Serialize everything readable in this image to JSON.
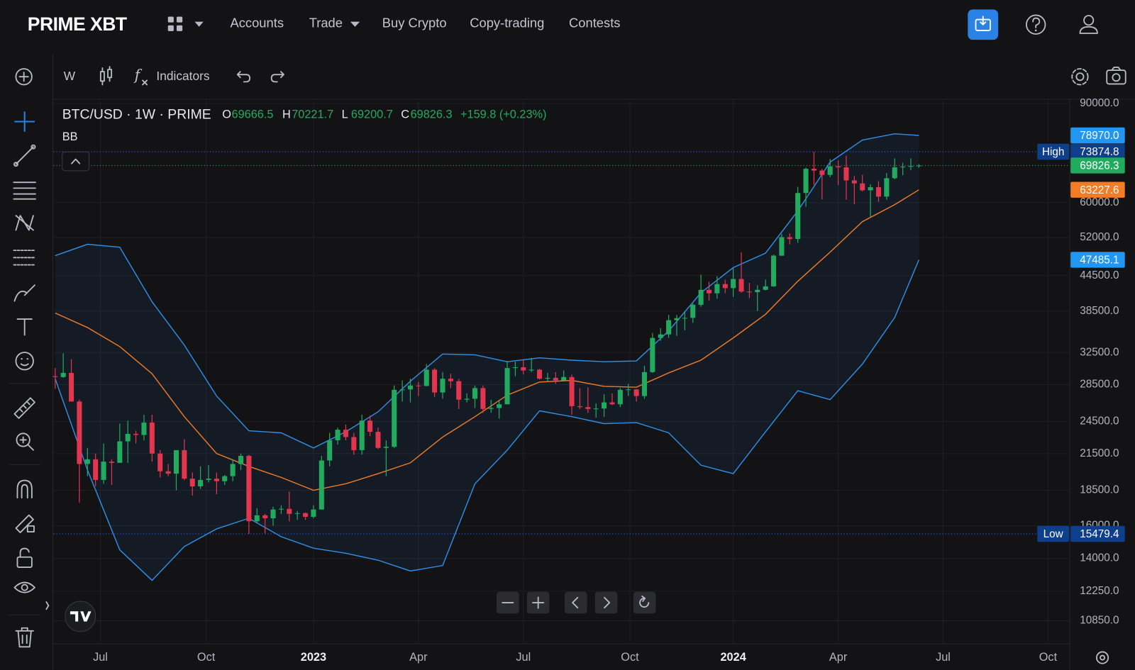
{
  "header": {
    "logo": "PRIME XBT",
    "nav": [
      "Accounts",
      "Trade",
      "Buy Crypto",
      "Copy-trading",
      "Contests"
    ]
  },
  "toolbar": {
    "interval": "W",
    "indicators": "Indicators"
  },
  "chart_data": {
    "type": "candlestick",
    "title": "BTC/USD · 1W · PRIME",
    "ohlc_labels": [
      "O",
      "H",
      "L",
      "C"
    ],
    "change": "+159.8 (+0.23%)",
    "indicator": "BB",
    "up_color": "#22ab5f",
    "down_color": "#e2364f",
    "ohlc": [
      [
        29500,
        30500,
        28000,
        29400
      ],
      [
        29400,
        32400,
        29300,
        29900
      ],
      [
        29900,
        31600,
        26600,
        26600
      ],
      [
        26600,
        26800,
        17600,
        20600
      ],
      [
        20600,
        22000,
        19600,
        21000
      ],
      [
        21000,
        21500,
        18800,
        19300
      ],
      [
        19300,
        22400,
        19000,
        20800
      ],
      [
        20800,
        21000,
        18900,
        20700
      ],
      [
        20700,
        24300,
        20700,
        22600
      ],
      [
        22600,
        24600,
        20700,
        23300
      ],
      [
        23300,
        23600,
        22400,
        23200
      ],
      [
        23200,
        25200,
        22700,
        24400
      ],
      [
        24400,
        25200,
        20800,
        21500
      ],
      [
        21500,
        21800,
        19500,
        20000
      ],
      [
        20000,
        20600,
        19600,
        19800
      ],
      [
        19800,
        21800,
        18500,
        21800
      ],
      [
        21800,
        22800,
        19300,
        19400
      ],
      [
        19400,
        19900,
        18100,
        18800
      ],
      [
        18800,
        20400,
        18600,
        19300
      ],
      [
        19300,
        20500,
        19100,
        19400
      ],
      [
        19400,
        19900,
        18200,
        19200
      ],
      [
        19200,
        19700,
        18900,
        19600
      ],
      [
        19600,
        21000,
        19200,
        20600
      ],
      [
        20600,
        21500,
        20100,
        21300
      ],
      [
        21300,
        21400,
        15479.4,
        16300
      ],
      [
        16300,
        17200,
        16200,
        16700
      ],
      [
        16700,
        16800,
        15500,
        16500
      ],
      [
        16500,
        17300,
        16000,
        17100
      ],
      [
        17100,
        17400,
        16800,
        17150
      ],
      [
        17150,
        18400,
        16300,
        16800
      ],
      [
        16800,
        17000,
        16400,
        16850
      ],
      [
        16850,
        16900,
        16400,
        16600
      ],
      [
        16600,
        17400,
        16500,
        17100
      ],
      [
        17100,
        21300,
        17100,
        20900
      ],
      [
        20900,
        23400,
        20400,
        22700
      ],
      [
        22700,
        23900,
        22300,
        23700
      ],
      [
        23700,
        24200,
        22700,
        23000
      ],
      [
        23000,
        23400,
        21400,
        21800
      ],
      [
        21800,
        25200,
        21400,
        24600
      ],
      [
        24600,
        25100,
        23100,
        23500
      ],
      [
        23500,
        23900,
        21900,
        22000
      ],
      [
        22000,
        22700,
        19600,
        22100
      ],
      [
        22100,
        28400,
        22000,
        27900
      ],
      [
        27900,
        29000,
        26600,
        27950
      ],
      [
        27950,
        29200,
        26500,
        28400
      ],
      [
        28400,
        28800,
        27200,
        28350
      ],
      [
        28350,
        31000,
        28300,
        30300
      ],
      [
        30300,
        30500,
        27100,
        27600
      ],
      [
        27600,
        30000,
        26900,
        29200
      ],
      [
        29200,
        29800,
        28100,
        28900
      ],
      [
        28900,
        29200,
        25800,
        26800
      ],
      [
        26800,
        27500,
        26500,
        26900
      ],
      [
        26900,
        28400,
        25900,
        28100
      ],
      [
        28100,
        28400,
        25400,
        25800
      ],
      [
        25800,
        26800,
        25400,
        25900
      ],
      [
        25900,
        26800,
        24800,
        26300
      ],
      [
        26300,
        31400,
        26300,
        30500
      ],
      [
        30500,
        31300,
        29500,
        30600
      ],
      [
        30600,
        31500,
        29700,
        30200
      ],
      [
        30200,
        31800,
        30000,
        30300
      ],
      [
        30300,
        30400,
        29100,
        29200
      ],
      [
        29200,
        29900,
        28900,
        29300
      ],
      [
        29300,
        30000,
        28600,
        29000
      ],
      [
        29000,
        30200,
        29000,
        29400
      ],
      [
        29400,
        29700,
        25200,
        26100
      ],
      [
        26100,
        28100,
        25800,
        26000
      ],
      [
        26000,
        28200,
        25400,
        25800
      ],
      [
        25800,
        26400,
        24900,
        25850
      ],
      [
        25850,
        27400,
        25000,
        26500
      ],
      [
        26500,
        27500,
        26200,
        26300
      ],
      [
        26300,
        28100,
        26000,
        27900
      ],
      [
        27900,
        28600,
        27200,
        27950
      ],
      [
        27950,
        28000,
        26600,
        27200
      ],
      [
        27200,
        30800,
        26900,
        30000
      ],
      [
        30000,
        35200,
        29900,
        34500
      ],
      [
        34500,
        35900,
        34100,
        35000
      ],
      [
        35000,
        37900,
        34500,
        37100
      ],
      [
        37100,
        37900,
        34800,
        37400
      ],
      [
        37400,
        38400,
        35600,
        37450
      ],
      [
        37450,
        39700,
        36700,
        39500
      ],
      [
        39500,
        44700,
        39200,
        42000
      ],
      [
        42000,
        43400,
        40200,
        41400
      ],
      [
        41400,
        44400,
        40500,
        43000
      ],
      [
        43000,
        43800,
        41400,
        42300
      ],
      [
        42300,
        45900,
        40800,
        43900
      ],
      [
        43900,
        49000,
        41500,
        41700
      ],
      [
        41700,
        43200,
        40600,
        41600
      ],
      [
        41600,
        42800,
        38500,
        42000
      ],
      [
        42000,
        43800,
        41900,
        42600
      ],
      [
        42600,
        48500,
        42500,
        48300
      ],
      [
        48300,
        52800,
        48200,
        52100
      ],
      [
        52100,
        52900,
        50600,
        51700
      ],
      [
        51700,
        64000,
        50900,
        62400
      ],
      [
        62400,
        69200,
        59000,
        68900
      ],
      [
        68900,
        73874.8,
        64500,
        68400
      ],
      [
        68400,
        68900,
        60800,
        67200
      ],
      [
        67200,
        71700,
        66600,
        69600
      ],
      [
        69600,
        71300,
        64500,
        69300
      ],
      [
        69300,
        72700,
        60700,
        65700
      ],
      [
        65700,
        66900,
        59600,
        64900
      ],
      [
        64900,
        67200,
        62800,
        63100
      ],
      [
        63100,
        64700,
        56500,
        63900
      ],
      [
        63900,
        65500,
        60200,
        61500
      ],
      [
        61500,
        67700,
        60700,
        66300
      ],
      [
        66300,
        71900,
        66000,
        69300
      ],
      [
        69300,
        70600,
        67100,
        69500
      ],
      [
        69500,
        71900,
        68500,
        69666.5
      ],
      [
        69666.5,
        70221.7,
        69200.7,
        69826.3
      ]
    ],
    "bollinger": {
      "x": [
        0,
        4,
        8,
        12,
        16,
        20,
        24,
        28,
        32,
        36,
        40,
        44,
        48,
        52,
        56,
        60,
        64,
        68,
        72,
        76,
        80,
        84,
        88,
        92,
        96,
        100,
        104,
        107
      ],
      "upper": [
        48300,
        50600,
        50000,
        40000,
        33500,
        27200,
        23600,
        23400,
        22000,
        23500,
        25500,
        28900,
        32300,
        32200,
        31300,
        31800,
        31500,
        31300,
        31400,
        35500,
        41500,
        46000,
        48800,
        58000,
        70800,
        77500,
        79500,
        78970
      ],
      "middle": [
        38200,
        36000,
        33300,
        29800,
        25000,
        21500,
        20400,
        19500,
        18500,
        19000,
        19800,
        20700,
        23000,
        25000,
        27300,
        28800,
        29000,
        28300,
        28200,
        29900,
        31500,
        34500,
        38000,
        43500,
        49000,
        55500,
        59500,
        63227.6
      ],
      "lower": [
        29200,
        20100,
        14500,
        12800,
        14700,
        15800,
        16500,
        15300,
        14600,
        14300,
        13900,
        13300,
        13600,
        19000,
        21800,
        25600,
        25000,
        24300,
        24400,
        23400,
        20500,
        19800,
        23500,
        27800,
        26800,
        31000,
        37500,
        47485.1
      ],
      "upper_color": "#2f8fe8",
      "middle_color": "#f07a28",
      "lower_color": "#2f8fe8",
      "value_labels": {
        "upper": "78970.0"
      }
    },
    "high": {
      "label": "High",
      "value": 73874.8
    },
    "low": {
      "label": "Low",
      "value": 15479.4
    },
    "log_y": true,
    "ylim": [
      9870,
      91600
    ],
    "yticks": [
      {
        "value": 90000,
        "label": "90000.0"
      },
      {
        "value": 60000,
        "label": "60000.0"
      },
      {
        "value": 52000,
        "label": "52000.0"
      },
      {
        "value": 44500,
        "label": "44500.0"
      },
      {
        "value": 38500,
        "label": "38500.0"
      },
      {
        "value": 32500,
        "label": "32500.0"
      },
      {
        "value": 28500,
        "label": "28500.0"
      },
      {
        "value": 24500,
        "label": "24500.0"
      },
      {
        "value": 21500,
        "label": "21500.0"
      },
      {
        "value": 18500,
        "label": "18500.0"
      },
      {
        "value": 16000,
        "label": "16000.0"
      },
      {
        "value": 14000,
        "label": "14000.0"
      },
      {
        "value": 12250,
        "label": "12250.0"
      },
      {
        "value": 10850,
        "label": "10850.0"
      }
    ],
    "xlim": [
      -0.2,
      125.7
    ],
    "xticks": [
      {
        "value": 5.6,
        "label": "Jul"
      },
      {
        "value": 18.7,
        "label": "Oct"
      },
      {
        "value": 32,
        "label": "2023"
      },
      {
        "value": 45,
        "label": "Apr"
      },
      {
        "value": 58,
        "label": "Jul"
      },
      {
        "value": 71.2,
        "label": "Oct"
      },
      {
        "value": 84,
        "label": "2024"
      },
      {
        "value": 97,
        "label": "Apr"
      },
      {
        "value": 110,
        "label": "Jul"
      },
      {
        "value": 123,
        "label": "Oct"
      }
    ],
    "grid": true
  }
}
